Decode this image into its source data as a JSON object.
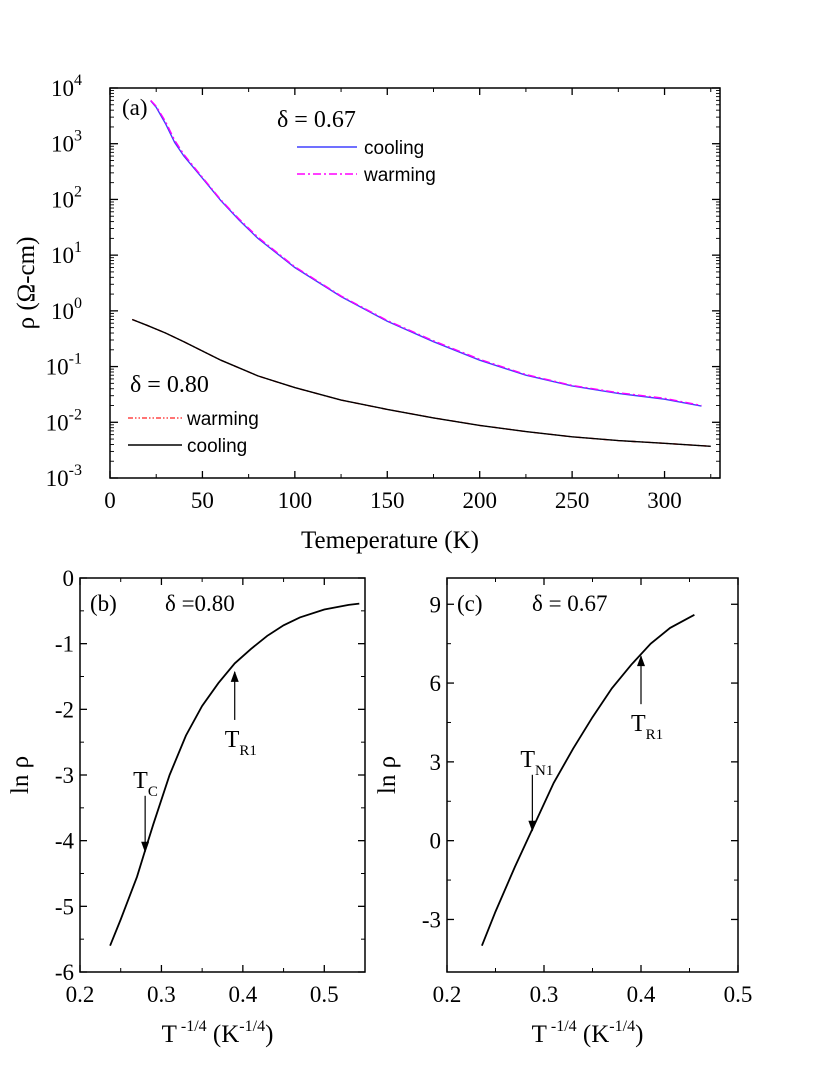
{
  "chart_data": [
    {
      "type": "line",
      "panel_label": "(a)",
      "xlabel": "Temeperature (K)",
      "ylabel": "ρ (Ω-cm)",
      "xlim": [
        0,
        330
      ],
      "ylim": [
        0.001,
        10000
      ],
      "yscale": "log",
      "x_ticks": [
        0,
        50,
        100,
        150,
        200,
        250,
        300
      ],
      "y_tick_exponents": [
        -3,
        -2,
        -1,
        0,
        1,
        2,
        3,
        4
      ],
      "y_tick_base": "10",
      "groups": [
        {
          "label": "δ = 0.67",
          "series": [
            {
              "name": "cooling",
              "color": "#4040ff",
              "dash": "solid",
              "x": [
                22,
                25,
                30,
                35,
                40,
                50,
                60,
                70,
                80,
                100,
                125,
                150,
                175,
                200,
                225,
                250,
                275,
                300,
                320
              ],
              "y": [
                5900,
                4500,
                2300,
                1050,
                600,
                240,
                95,
                42,
                20,
                6,
                1.8,
                0.65,
                0.28,
                0.13,
                0.07,
                0.045,
                0.033,
                0.026,
                0.0195
              ]
            },
            {
              "name": "warming",
              "color": "#ff00ff",
              "dash": "dashdot",
              "x": [
                22,
                25,
                30,
                35,
                40,
                50,
                60,
                70,
                80,
                100,
                125,
                150,
                175,
                200,
                225,
                250,
                275,
                300,
                320
              ],
              "y": [
                6000,
                4700,
                2500,
                1150,
                640,
                250,
                98,
                44,
                21,
                6.2,
                1.85,
                0.67,
                0.29,
                0.135,
                0.072,
                0.046,
                0.034,
                0.027,
                0.02
              ]
            }
          ]
        },
        {
          "label": "δ = 0.80",
          "series": [
            {
              "name": "warming",
              "color": "#ff2020",
              "dash": "dashdotdot",
              "x": [
                12,
                20,
                30,
                40,
                50,
                60,
                80,
                100,
                125,
                150,
                175,
                200,
                225,
                250,
                275,
                300,
                325
              ],
              "y": [
                0.7,
                0.55,
                0.4,
                0.28,
                0.19,
                0.13,
                0.068,
                0.042,
                0.025,
                0.017,
                0.012,
                0.0088,
                0.0068,
                0.0055,
                0.0047,
                0.0042,
                0.0037
              ]
            },
            {
              "name": "cooling",
              "color": "#000000",
              "dash": "solid",
              "x": [
                12,
                20,
                30,
                40,
                50,
                60,
                80,
                100,
                125,
                150,
                175,
                200,
                225,
                250,
                275,
                300,
                325
              ],
              "y": [
                0.7,
                0.55,
                0.4,
                0.28,
                0.19,
                0.13,
                0.068,
                0.042,
                0.025,
                0.017,
                0.012,
                0.0088,
                0.0068,
                0.0055,
                0.0047,
                0.0042,
                0.0037
              ]
            }
          ]
        }
      ]
    },
    {
      "type": "line",
      "panel_label": "(b)",
      "title": "δ =0.80",
      "xlabel_base": "T",
      "xlabel_exp": " -1/4",
      "xlabel_unit": " (K",
      "xlabel_unit_exp": "-1/4",
      "xlabel_close": ")",
      "ylabel": "ln ρ",
      "xlim": [
        0.2,
        0.55
      ],
      "ylim": [
        -6,
        0
      ],
      "x_ticks": [
        "0.2",
        "0.3",
        "0.4",
        "0.5"
      ],
      "y_ticks": [
        "-6",
        "-5",
        "-4",
        "-3",
        "-2",
        "-1",
        "0"
      ],
      "series": [
        {
          "color": "#000000",
          "x": [
            0.237,
            0.25,
            0.27,
            0.28,
            0.29,
            0.31,
            0.33,
            0.35,
            0.37,
            0.39,
            0.41,
            0.43,
            0.45,
            0.47,
            0.5,
            0.53,
            0.543
          ],
          "y": [
            -5.6,
            -5.2,
            -4.55,
            -4.15,
            -3.75,
            -3.0,
            -2.4,
            -1.95,
            -1.6,
            -1.3,
            -1.08,
            -0.88,
            -0.72,
            -0.6,
            -0.48,
            -0.41,
            -0.39
          ]
        }
      ],
      "annotations": [
        {
          "base": "T",
          "sub": "C",
          "x": 0.28,
          "y": -4.2,
          "direction": "down"
        },
        {
          "base": "T",
          "sub": "R1",
          "x": 0.39,
          "y": -1.4,
          "direction": "up"
        }
      ]
    },
    {
      "type": "line",
      "panel_label": "(c)",
      "title": "δ = 0.67",
      "xlabel_base": "T",
      "xlabel_exp": " -1/4",
      "xlabel_unit": " (K",
      "xlabel_unit_exp": "-1/4",
      "xlabel_close": ")",
      "ylabel": "ln ρ",
      "xlim": [
        0.2,
        0.5
      ],
      "ylim": [
        -5,
        10
      ],
      "x_ticks": [
        "0.2",
        "0.3",
        "0.4",
        "0.5"
      ],
      "y_ticks": [
        "-3",
        "0",
        "3",
        "6",
        "9"
      ],
      "series": [
        {
          "color": "#000000",
          "x": [
            0.236,
            0.25,
            0.27,
            0.29,
            0.31,
            0.33,
            0.35,
            0.37,
            0.39,
            0.41,
            0.43,
            0.45,
            0.455
          ],
          "y": [
            -4.0,
            -2.7,
            -1.0,
            0.6,
            2.2,
            3.5,
            4.7,
            5.8,
            6.7,
            7.5,
            8.1,
            8.5,
            8.6
          ]
        }
      ],
      "annotations": [
        {
          "base": "T",
          "sub": "N1",
          "x": 0.288,
          "y": 0.3,
          "direction": "down"
        },
        {
          "base": "T",
          "sub": "R1",
          "x": 0.4,
          "y": 7.1,
          "direction": "up"
        }
      ]
    }
  ]
}
